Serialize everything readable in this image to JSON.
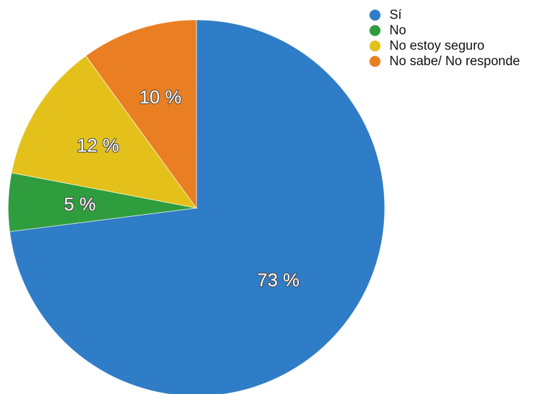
{
  "chart_data": {
    "type": "pie",
    "categories": [
      "Sí",
      "No",
      "No estoy seguro",
      "No sabe/ No responde"
    ],
    "values": [
      73,
      5,
      12,
      10
    ],
    "value_labels": [
      "73 %",
      "5 %",
      "12 %",
      "10 %"
    ],
    "colors": [
      "#2f7cc7",
      "#2f9d3e",
      "#e3c11a",
      "#e97f22"
    ],
    "start": "12 o'clock",
    "direction": "clockwise",
    "legend_position": "top-right"
  }
}
